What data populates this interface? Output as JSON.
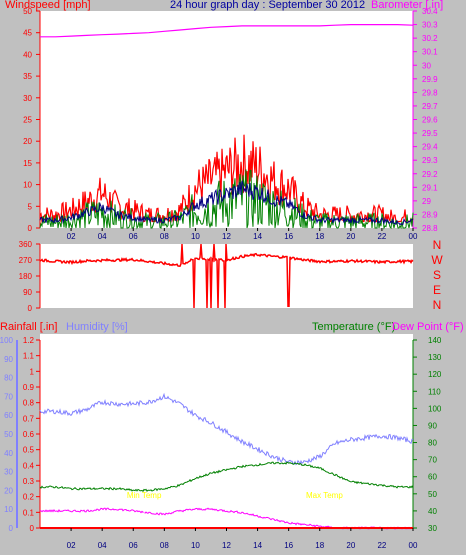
{
  "header": {
    "left": "Windspeed [mph]",
    "center": "24 hour graph day : September 30 2012",
    "right": "Barometer [.in]"
  },
  "colors": {
    "bg": "#c0c0c0",
    "panel": "#ffffff",
    "wind": "#ff0000",
    "wind_avg": "#000080",
    "wind_low": "#008000",
    "baro": "#ff00ff",
    "dir": "#ff0000",
    "rain": "#ff0000",
    "humidity": "#8080ff",
    "temp": "#008000",
    "dew": "#ff00ff",
    "title_blue": "#0000a0",
    "annot": "#ffff00"
  },
  "x_ticks": [
    "02",
    "04",
    "06",
    "08",
    "10",
    "12",
    "14",
    "16",
    "18",
    "20",
    "22",
    "00"
  ],
  "wind_axis_ticks": [
    "0",
    "5",
    "10",
    "15",
    "20",
    "25",
    "30",
    "35",
    "40",
    "45",
    "50"
  ],
  "baro_axis_ticks": [
    "28.8",
    "28.9",
    "29",
    "29.1",
    "29.2",
    "29.3",
    "29.4",
    "29.5",
    "29.6",
    "29.7",
    "29.8",
    "29.9",
    "30",
    "30.1",
    "30.2",
    "30.3",
    "30.4"
  ],
  "dir_axis_ticks": [
    "0",
    "90",
    "180",
    "270",
    "360"
  ],
  "dir_compass": [
    "N",
    "W",
    "S",
    "E",
    "N"
  ],
  "rain_axis_ticks": [
    "0",
    "0.1",
    "0.2",
    "0.3",
    "0.4",
    "0.5",
    "0.6",
    "0.7",
    "0.8",
    "0.9",
    "1",
    "1.1",
    "1.2"
  ],
  "hum_axis_ticks": [
    "0",
    "10",
    "20",
    "30",
    "40",
    "50",
    "60",
    "70",
    "80",
    "90",
    "100"
  ],
  "temp_axis_ticks": [
    "30",
    "40",
    "50",
    "60",
    "70",
    "80",
    "90",
    "100",
    "110",
    "120",
    "130",
    "140"
  ],
  "lower_labels": {
    "rain": "Rainfall [.in]",
    "humidity": "Humidity [%]",
    "temp": "Temperature (°F)",
    "dew": "Dew Point (°F)"
  },
  "annotations": {
    "min": "Min Temp",
    "max": "Max Temp"
  },
  "chart_data": [
    {
      "type": "line",
      "title": "24 hour graph day : September 30 2012",
      "x": [
        0,
        1,
        2,
        3,
        4,
        5,
        6,
        7,
        8,
        9,
        10,
        11,
        12,
        13,
        14,
        15,
        16,
        17,
        18,
        19,
        20,
        21,
        22,
        23,
        24
      ],
      "series": [
        {
          "name": "Windspeed [mph]",
          "axis": "left",
          "values": [
            3,
            3,
            4,
            6,
            8,
            5,
            4,
            3,
            3,
            4,
            9,
            11,
            13,
            15,
            14,
            11,
            9,
            5,
            3,
            3,
            3,
            3,
            3,
            2,
            3
          ]
        },
        {
          "name": "Barometer [.in]",
          "axis": "right",
          "values": [
            30.21,
            30.21,
            30.215,
            30.22,
            30.225,
            30.23,
            30.235,
            30.24,
            30.25,
            30.26,
            30.27,
            30.28,
            30.285,
            30.29,
            30.29,
            30.29,
            30.29,
            30.29,
            30.29,
            30.295,
            30.3,
            30.3,
            30.3,
            30.3,
            30.295
          ]
        }
      ],
      "ylim": [
        0,
        50
      ],
      "ylim_right": [
        28.8,
        30.4
      ]
    },
    {
      "type": "line",
      "title": "",
      "x": [
        0,
        1,
        2,
        3,
        4,
        5,
        6,
        7,
        8,
        9,
        10,
        11,
        12,
        13,
        14,
        15,
        16,
        17,
        18,
        19,
        20,
        21,
        22,
        23,
        24
      ],
      "series": [
        {
          "name": "",
          "values": [
            270,
            262,
            258,
            265,
            268,
            270,
            272,
            262,
            250,
            240,
            280,
            275,
            270,
            290,
            300,
            290,
            285,
            270,
            262,
            262,
            265,
            262,
            258,
            262,
            262
          ]
        }
      ],
      "ylim": [
        0,
        360
      ]
    },
    {
      "type": "line",
      "title": "",
      "x": [
        0,
        1,
        2,
        3,
        4,
        5,
        6,
        7,
        8,
        9,
        10,
        11,
        12,
        13,
        14,
        15,
        16,
        17,
        18,
        19,
        20,
        21,
        22,
        23,
        24
      ],
      "series": [
        {
          "name": "Rainfall [.in]",
          "axis": "rain",
          "values": [
            0,
            0,
            0,
            0,
            0,
            0,
            0,
            0,
            0,
            0,
            0,
            0,
            0,
            0,
            0,
            0,
            0,
            0,
            0,
            0,
            0,
            0,
            0,
            0,
            0
          ]
        },
        {
          "name": "Humidity [%]",
          "axis": "humidity",
          "values": [
            62,
            62,
            61,
            63,
            67,
            66,
            66,
            67,
            70,
            66,
            60,
            56,
            51,
            46,
            42,
            38,
            35,
            35,
            38,
            45,
            47,
            48,
            49,
            48,
            46
          ]
        },
        {
          "name": "Temperature (°F)",
          "axis": "temp",
          "values": [
            54,
            54,
            53,
            53,
            53,
            53,
            52,
            52,
            53,
            55,
            59,
            62,
            64,
            66,
            67,
            68,
            68,
            67,
            65,
            61,
            57,
            56,
            55,
            54,
            54
          ]
        },
        {
          "name": "Dew Point (°F)",
          "axis": "temp",
          "values": [
            40,
            40,
            40,
            40,
            41,
            41,
            40,
            39,
            38,
            40,
            41,
            41,
            40,
            39,
            37,
            35,
            33,
            32,
            31,
            30,
            30,
            30,
            30,
            30,
            30
          ]
        }
      ],
      "ylim_rain": [
        0,
        1.2
      ],
      "ylim_humidity": [
        0,
        100
      ],
      "ylim_temp": [
        30,
        140
      ]
    }
  ]
}
